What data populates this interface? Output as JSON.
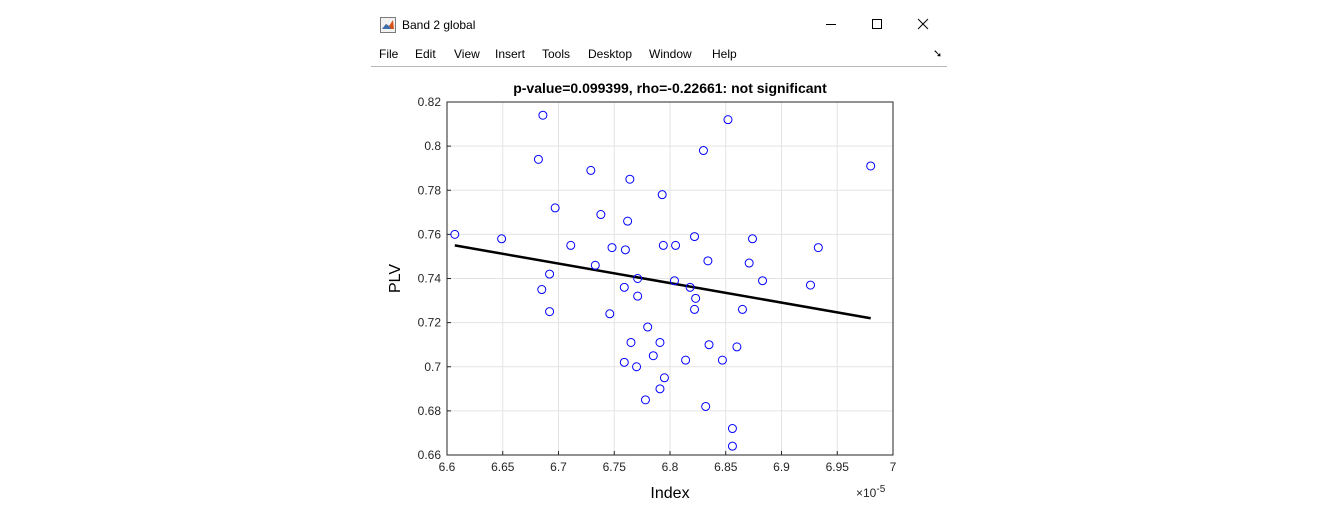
{
  "window": {
    "title": "Band 2 global",
    "icon": "matlab-figure-icon",
    "controls": [
      "minimize-icon",
      "maximize-icon",
      "close-icon"
    ]
  },
  "menu": {
    "items": [
      "File",
      "Edit",
      "View",
      "Insert",
      "Tools",
      "Desktop",
      "Window",
      "Help"
    ],
    "dock_icon": "dock-arrow-icon",
    "dock_glyph": "➘"
  },
  "chart_data": {
    "type": "scatter",
    "title": "p-value=0.099399, rho=-0.22661: not significant",
    "xlabel": "Index",
    "ylabel": "PLV",
    "x_exponent_label": "×10",
    "x_exponent_power": "-5",
    "xlim": [
      6.6,
      7.0
    ],
    "ylim": [
      0.66,
      0.82
    ],
    "xticks": [
      6.6,
      6.65,
      6.7,
      6.75,
      6.8,
      6.85,
      6.9,
      6.95,
      7.0
    ],
    "xtick_labels": [
      "6.6",
      "6.65",
      "6.7",
      "6.75",
      "6.8",
      "6.85",
      "6.9",
      "6.95",
      "7"
    ],
    "yticks": [
      0.66,
      0.68,
      0.7,
      0.72,
      0.74,
      0.76,
      0.78,
      0.8,
      0.82
    ],
    "ytick_labels": [
      "0.66",
      "0.68",
      "0.7",
      "0.72",
      "0.74",
      "0.76",
      "0.78",
      "0.8",
      "0.82"
    ],
    "grid": true,
    "marker_color": "#0000ff",
    "line_color": "#000000",
    "points": [
      [
        6.607,
        0.76
      ],
      [
        6.649,
        0.758
      ],
      [
        6.682,
        0.794
      ],
      [
        6.686,
        0.814
      ],
      [
        6.685,
        0.735
      ],
      [
        6.692,
        0.742
      ],
      [
        6.692,
        0.725
      ],
      [
        6.697,
        0.772
      ],
      [
        6.711,
        0.755
      ],
      [
        6.729,
        0.789
      ],
      [
        6.733,
        0.746
      ],
      [
        6.738,
        0.769
      ],
      [
        6.746,
        0.724
      ],
      [
        6.748,
        0.754
      ],
      [
        6.76,
        0.753
      ],
      [
        6.759,
        0.736
      ],
      [
        6.759,
        0.702
      ],
      [
        6.762,
        0.766
      ],
      [
        6.764,
        0.785
      ],
      [
        6.765,
        0.711
      ],
      [
        6.77,
        0.7
      ],
      [
        6.771,
        0.74
      ],
      [
        6.771,
        0.732
      ],
      [
        6.778,
        0.685
      ],
      [
        6.78,
        0.718
      ],
      [
        6.785,
        0.705
      ],
      [
        6.791,
        0.711
      ],
      [
        6.791,
        0.69
      ],
      [
        6.793,
        0.778
      ],
      [
        6.794,
        0.755
      ],
      [
        6.795,
        0.695
      ],
      [
        6.804,
        0.739
      ],
      [
        6.805,
        0.755
      ],
      [
        6.814,
        0.703
      ],
      [
        6.818,
        0.736
      ],
      [
        6.822,
        0.759
      ],
      [
        6.822,
        0.726
      ],
      [
        6.823,
        0.731
      ],
      [
        6.83,
        0.798
      ],
      [
        6.832,
        0.682
      ],
      [
        6.834,
        0.748
      ],
      [
        6.835,
        0.71
      ],
      [
        6.847,
        0.703
      ],
      [
        6.852,
        0.812
      ],
      [
        6.856,
        0.672
      ],
      [
        6.856,
        0.664
      ],
      [
        6.86,
        0.709
      ],
      [
        6.865,
        0.726
      ],
      [
        6.871,
        0.747
      ],
      [
        6.874,
        0.758
      ],
      [
        6.883,
        0.739
      ],
      [
        6.926,
        0.737
      ],
      [
        6.933,
        0.754
      ],
      [
        6.98,
        0.791
      ]
    ],
    "fit_line": {
      "x": [
        6.607,
        6.98
      ],
      "y": [
        0.755,
        0.722
      ]
    }
  }
}
